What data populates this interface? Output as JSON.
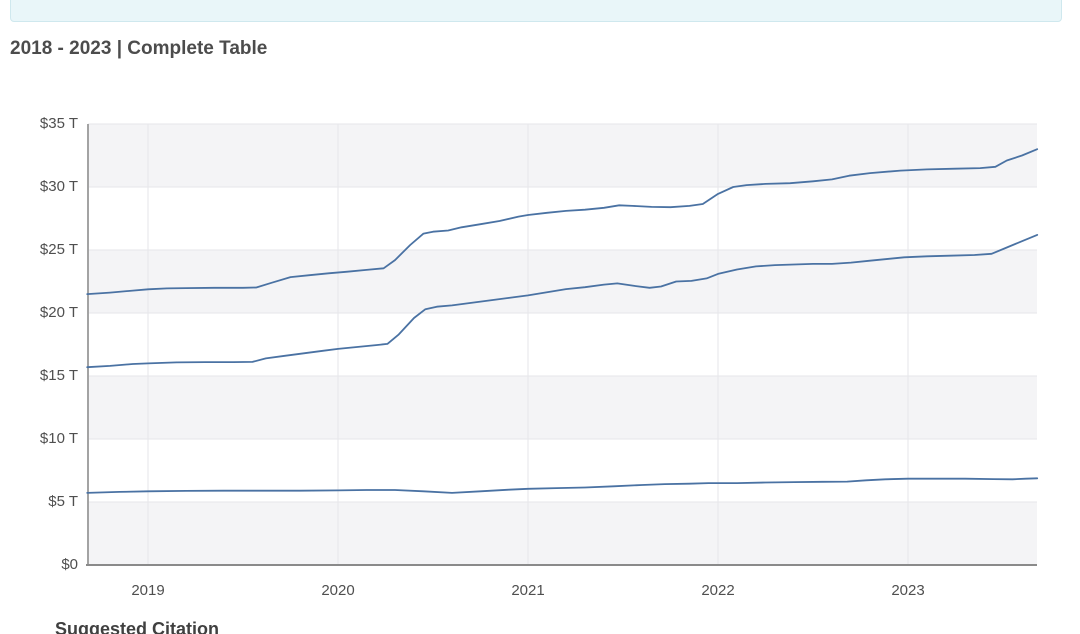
{
  "page": {
    "title": "2018 - 2023 | Complete Table",
    "citation_heading": "Suggested Citation"
  },
  "colors": {
    "line": "#4a72a3",
    "band_gray": "#f4f4f6",
    "grid": "#e6e6ea",
    "x_axis_line": "#8a8a8a",
    "y_axis_line": "#a3a3a3",
    "banner_bg": "#e9f6f9",
    "banner_border": "#cfe8ee",
    "tick_text": "#4f4f4f",
    "title_text": "#4c4c4c"
  },
  "chart_data": {
    "type": "line",
    "title": "2018 - 2023 | Complete Table",
    "ylabel": "",
    "xlabel": "",
    "y_axis": {
      "unit": "$ trillions",
      "range": [
        0,
        35
      ],
      "tick_values": [
        0,
        5,
        10,
        15,
        20,
        25,
        30,
        35
      ],
      "tick_labels": [
        "$0",
        "$5 T",
        "$10 T",
        "$15 T",
        "$20 T",
        "$25 T",
        "$30 T",
        "$35 T"
      ]
    },
    "x_axis": {
      "range": [
        2018.68,
        2023.68
      ],
      "tick_values": [
        2019,
        2020,
        2021,
        2022,
        2023
      ],
      "tick_labels": [
        "2019",
        "2020",
        "2021",
        "2022",
        "2023"
      ]
    },
    "grid": true,
    "alternate_bands": true,
    "legend": "none",
    "series": [
      {
        "name": "top-line",
        "points": [
          [
            2018.68,
            21.5
          ],
          [
            2018.8,
            21.62
          ],
          [
            2018.92,
            21.78
          ],
          [
            2019.0,
            21.88
          ],
          [
            2019.1,
            21.95
          ],
          [
            2019.2,
            21.98
          ],
          [
            2019.35,
            22.0
          ],
          [
            2019.5,
            22.0
          ],
          [
            2019.57,
            22.02
          ],
          [
            2019.65,
            22.4
          ],
          [
            2019.75,
            22.85
          ],
          [
            2019.85,
            23.0
          ],
          [
            2019.95,
            23.15
          ],
          [
            2020.05,
            23.28
          ],
          [
            2020.15,
            23.42
          ],
          [
            2020.24,
            23.55
          ],
          [
            2020.3,
            24.2
          ],
          [
            2020.38,
            25.4
          ],
          [
            2020.45,
            26.3
          ],
          [
            2020.5,
            26.45
          ],
          [
            2020.58,
            26.55
          ],
          [
            2020.65,
            26.8
          ],
          [
            2020.75,
            27.05
          ],
          [
            2020.85,
            27.3
          ],
          [
            2020.95,
            27.65
          ],
          [
            2021.0,
            27.78
          ],
          [
            2021.1,
            27.95
          ],
          [
            2021.2,
            28.1
          ],
          [
            2021.3,
            28.2
          ],
          [
            2021.4,
            28.35
          ],
          [
            2021.48,
            28.55
          ],
          [
            2021.55,
            28.5
          ],
          [
            2021.65,
            28.42
          ],
          [
            2021.75,
            28.4
          ],
          [
            2021.85,
            28.5
          ],
          [
            2021.92,
            28.65
          ],
          [
            2022.0,
            29.45
          ],
          [
            2022.08,
            30.0
          ],
          [
            2022.15,
            30.15
          ],
          [
            2022.25,
            30.25
          ],
          [
            2022.38,
            30.3
          ],
          [
            2022.5,
            30.45
          ],
          [
            2022.6,
            30.6
          ],
          [
            2022.69,
            30.9
          ],
          [
            2022.8,
            31.1
          ],
          [
            2022.96,
            31.3
          ],
          [
            2023.1,
            31.4
          ],
          [
            2023.25,
            31.45
          ],
          [
            2023.38,
            31.5
          ],
          [
            2023.46,
            31.6
          ],
          [
            2023.52,
            32.1
          ],
          [
            2023.6,
            32.5
          ],
          [
            2023.68,
            33.0
          ]
        ]
      },
      {
        "name": "middle-line",
        "points": [
          [
            2018.68,
            15.7
          ],
          [
            2018.8,
            15.8
          ],
          [
            2018.92,
            15.95
          ],
          [
            2019.0,
            16.0
          ],
          [
            2019.15,
            16.08
          ],
          [
            2019.3,
            16.1
          ],
          [
            2019.45,
            16.1
          ],
          [
            2019.55,
            16.12
          ],
          [
            2019.62,
            16.4
          ],
          [
            2019.72,
            16.6
          ],
          [
            2019.82,
            16.8
          ],
          [
            2019.92,
            17.0
          ],
          [
            2020.0,
            17.15
          ],
          [
            2020.1,
            17.3
          ],
          [
            2020.2,
            17.45
          ],
          [
            2020.26,
            17.55
          ],
          [
            2020.32,
            18.3
          ],
          [
            2020.4,
            19.6
          ],
          [
            2020.46,
            20.3
          ],
          [
            2020.52,
            20.5
          ],
          [
            2020.6,
            20.6
          ],
          [
            2020.7,
            20.8
          ],
          [
            2020.8,
            21.0
          ],
          [
            2020.9,
            21.2
          ],
          [
            2021.0,
            21.4
          ],
          [
            2021.1,
            21.65
          ],
          [
            2021.2,
            21.9
          ],
          [
            2021.3,
            22.05
          ],
          [
            2021.4,
            22.25
          ],
          [
            2021.47,
            22.35
          ],
          [
            2021.56,
            22.15
          ],
          [
            2021.64,
            22.0
          ],
          [
            2021.7,
            22.1
          ],
          [
            2021.78,
            22.5
          ],
          [
            2021.86,
            22.55
          ],
          [
            2021.94,
            22.75
          ],
          [
            2022.0,
            23.1
          ],
          [
            2022.1,
            23.45
          ],
          [
            2022.2,
            23.7
          ],
          [
            2022.3,
            23.8
          ],
          [
            2022.4,
            23.85
          ],
          [
            2022.5,
            23.9
          ],
          [
            2022.6,
            23.9
          ],
          [
            2022.7,
            24.0
          ],
          [
            2022.8,
            24.15
          ],
          [
            2022.9,
            24.3
          ],
          [
            2022.98,
            24.42
          ],
          [
            2023.1,
            24.5
          ],
          [
            2023.22,
            24.55
          ],
          [
            2023.35,
            24.6
          ],
          [
            2023.44,
            24.7
          ],
          [
            2023.52,
            25.2
          ],
          [
            2023.6,
            25.7
          ],
          [
            2023.68,
            26.2
          ]
        ]
      },
      {
        "name": "bottom-line",
        "points": [
          [
            2018.68,
            5.72
          ],
          [
            2018.85,
            5.8
          ],
          [
            2019.0,
            5.85
          ],
          [
            2019.2,
            5.88
          ],
          [
            2019.4,
            5.9
          ],
          [
            2019.6,
            5.9
          ],
          [
            2019.8,
            5.9
          ],
          [
            2020.0,
            5.92
          ],
          [
            2020.15,
            5.95
          ],
          [
            2020.3,
            5.95
          ],
          [
            2020.45,
            5.85
          ],
          [
            2020.6,
            5.72
          ],
          [
            2020.75,
            5.85
          ],
          [
            2020.9,
            5.98
          ],
          [
            2021.0,
            6.05
          ],
          [
            2021.15,
            6.1
          ],
          [
            2021.3,
            6.15
          ],
          [
            2021.45,
            6.25
          ],
          [
            2021.6,
            6.35
          ],
          [
            2021.72,
            6.42
          ],
          [
            2021.85,
            6.45
          ],
          [
            2021.95,
            6.5
          ],
          [
            2022.1,
            6.5
          ],
          [
            2022.25,
            6.55
          ],
          [
            2022.4,
            6.58
          ],
          [
            2022.55,
            6.6
          ],
          [
            2022.68,
            6.62
          ],
          [
            2022.78,
            6.72
          ],
          [
            2022.88,
            6.8
          ],
          [
            2023.0,
            6.85
          ],
          [
            2023.15,
            6.85
          ],
          [
            2023.3,
            6.85
          ],
          [
            2023.45,
            6.82
          ],
          [
            2023.55,
            6.8
          ],
          [
            2023.62,
            6.85
          ],
          [
            2023.68,
            6.88
          ]
        ]
      }
    ]
  }
}
